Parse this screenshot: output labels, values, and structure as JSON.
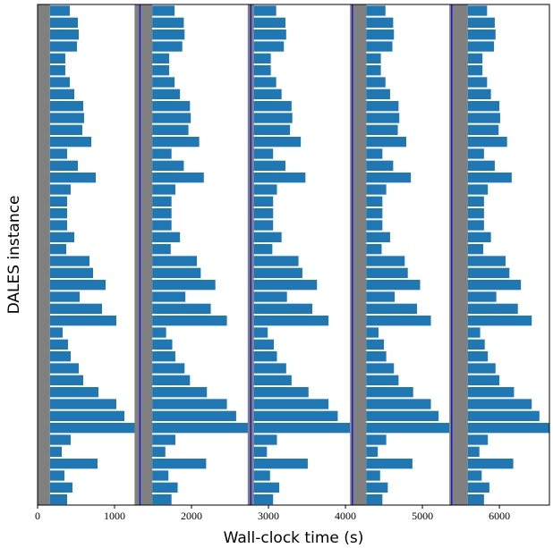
{
  "chart_data": {
    "type": "gantt",
    "xlabel": "Wall-clock time (s)",
    "ylabel": "DALES instance",
    "xlim": [
      0,
      6650
    ],
    "xticks": [
      0,
      1000,
      2000,
      3000,
      4000,
      5000,
      6000
    ],
    "bar_color": "#1f77b4",
    "busy_color": "#808080",
    "marker_color": "#1a1acc",
    "phases": [
      {
        "busy": [
          0,
          160
        ],
        "start": 160,
        "values": [
          419,
          523,
          535,
          512,
          360,
          360,
          419,
          477,
          593,
          605,
          581,
          698,
          384,
          523,
          756,
          430,
          384,
          384,
          384,
          477,
          372,
          674,
          721,
          884,
          547,
          837,
          1023,
          326,
          395,
          430,
          535,
          593,
          791,
          1023,
          1128,
          1268,
          430,
          314,
          779,
          349,
          453,
          384
        ]
      },
      {
        "busy": [
          1260,
          1490
        ],
        "marker": 1330,
        "start": 1490,
        "values": [
          1780,
          1900,
          1910,
          1880,
          1710,
          1710,
          1780,
          1850,
          1980,
          1990,
          1960,
          2100,
          1740,
          1900,
          2160,
          1790,
          1740,
          1740,
          1740,
          1850,
          1730,
          2070,
          2120,
          2310,
          1920,
          2250,
          2460,
          1670,
          1750,
          1790,
          1910,
          1980,
          2200,
          2460,
          2580,
          2740,
          1790,
          1660,
          2190,
          1700,
          1820,
          1740
        ]
      },
      {
        "busy": [
          2730,
          2810
        ],
        "marker": 2770,
        "start": 2810,
        "values": [
          3100,
          3220,
          3230,
          3200,
          3030,
          3030,
          3100,
          3170,
          3300,
          3310,
          3280,
          3420,
          3060,
          3220,
          3480,
          3110,
          3060,
          3060,
          3060,
          3170,
          3050,
          3390,
          3440,
          3630,
          3240,
          3570,
          3780,
          2990,
          3070,
          3110,
          3230,
          3300,
          3520,
          3780,
          3900,
          4060,
          3110,
          2980,
          3510,
          3020,
          3140,
          3060
        ]
      },
      {
        "busy": [
          4060,
          4270
        ],
        "marker": 4090,
        "start": 4270,
        "values": [
          4520,
          4620,
          4630,
          4610,
          4460,
          4460,
          4520,
          4580,
          4690,
          4700,
          4680,
          4790,
          4480,
          4620,
          4850,
          4530,
          4480,
          4480,
          4480,
          4580,
          4470,
          4770,
          4810,
          4970,
          4640,
          4930,
          5110,
          4430,
          4500,
          4530,
          4630,
          4690,
          4880,
          5110,
          5210,
          5350,
          4530,
          4420,
          4870,
          4450,
          4550,
          4480
        ]
      },
      {
        "busy": [
          5350,
          5590
        ],
        "marker": 5380,
        "start": 5590,
        "values": [
          5840,
          5940,
          5950,
          5930,
          5780,
          5780,
          5840,
          5890,
          6000,
          6010,
          5990,
          6100,
          5800,
          5940,
          6160,
          5850,
          5800,
          5800,
          5800,
          5890,
          5790,
          6080,
          6130,
          6280,
          5960,
          6240,
          6420,
          5750,
          5810,
          5850,
          5950,
          6000,
          6190,
          6420,
          6520,
          6650,
          5850,
          5740,
          6180,
          5770,
          5870,
          5800
        ]
      }
    ]
  }
}
